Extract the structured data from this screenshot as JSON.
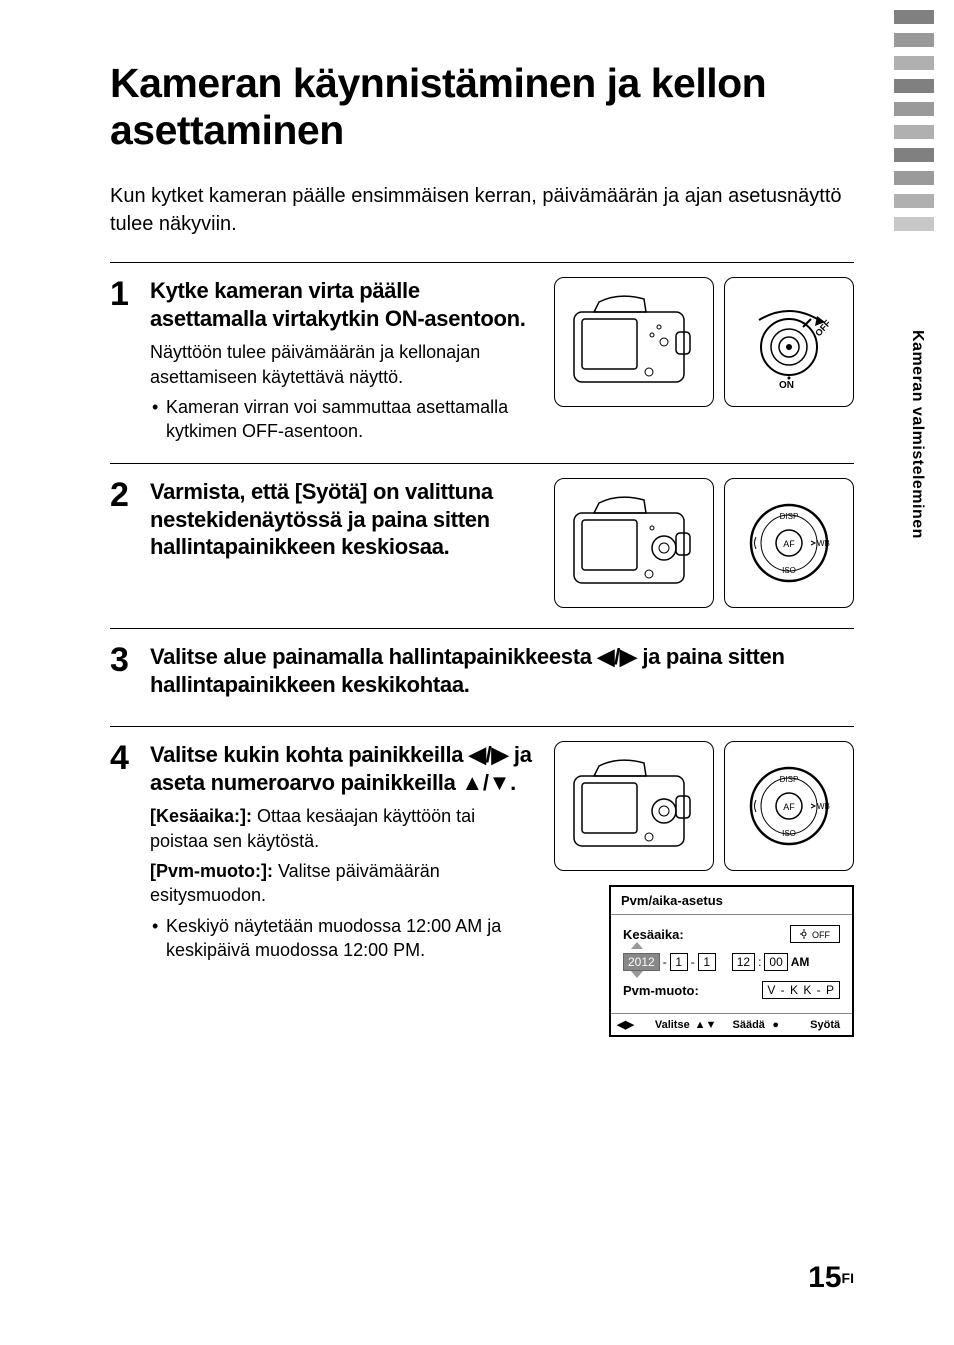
{
  "title": "Kameran käynnistäminen ja kellon asettaminen",
  "intro": "Kun kytket kameran päälle ensimmäisen kerran, päivämäärän ja ajan asetusnäyttö tulee näkyviin.",
  "side_tab": "Kameran valmisteleminen",
  "page_number": "15",
  "page_suffix": "FI",
  "side_bar_colors": [
    "#808080",
    "#9a9a9a",
    "#b0b0b0",
    "#808080",
    "#9a9a9a",
    "#b0b0b0",
    "#808080",
    "#9a9a9a",
    "#b0b0b0",
    "#c8c8c8"
  ],
  "steps": {
    "s1": {
      "num": "1",
      "heading": "Kytke kameran virta päälle asettamalla virtakytkin ON-asentoon.",
      "desc": "Näyttöön tulee päivämäärän ja kellonajan asettamiseen käytettävä näyttö.",
      "bullet": "Kameran virran voi sammuttaa asettamalla kytkimen OFF-asentoon.",
      "on_label": "ON",
      "off_label": "OFF"
    },
    "s2": {
      "num": "2",
      "heading": "Varmista, että [Syötä] on valittuna nestekidenäytössä ja paina sitten hallintapainikkeen keskiosaa.",
      "dial_labels": {
        "top": "DISP",
        "right": "WB",
        "bottom": "ISO",
        "center": "AF"
      }
    },
    "s3": {
      "num": "3",
      "heading_a": "Valitse alue painamalla hallintapainikkeesta ",
      "heading_arrows": "◀/▶",
      "heading_b": " ja paina sitten hallintapainikkeen keskikohtaa."
    },
    "s4": {
      "num": "4",
      "heading_a": "Valitse kukin kohta painikkeilla ",
      "heading_lr": "◀/▶",
      "heading_b": " ja aseta numeroarvo painikkeilla ",
      "heading_ud": "▲/▼",
      "heading_c": ".",
      "kesa_label": "[Kesäaika:]:",
      "kesa_text": " Ottaa kesäajan käyttöön tai poistaa sen käytöstä.",
      "pvm_label": "[Pvm-muoto:]:",
      "pvm_text": " Valitse päivämäärän esitysmuodon.",
      "bullet": "Keskiyö näytetään muodossa 12:00 AM ja keskipäivä muodossa 12:00 PM.",
      "dial_labels": {
        "top": "DISP",
        "right": "WB",
        "bottom": "ISO",
        "center": "AF"
      }
    }
  },
  "screen": {
    "title": "Pvm/aika-asetus",
    "dst_label": "Kesäaika:",
    "dst_value": "OFF",
    "year": "2012",
    "m1": "1",
    "d1": "1",
    "hh": "12",
    "mm": "00",
    "ampm": "AM",
    "fmt_label": "Pvm-muoto:",
    "fmt_value": "V - K K - P",
    "footer_select": "Valitse",
    "footer_adjust": "Säädä",
    "footer_enter": "Syötä"
  }
}
